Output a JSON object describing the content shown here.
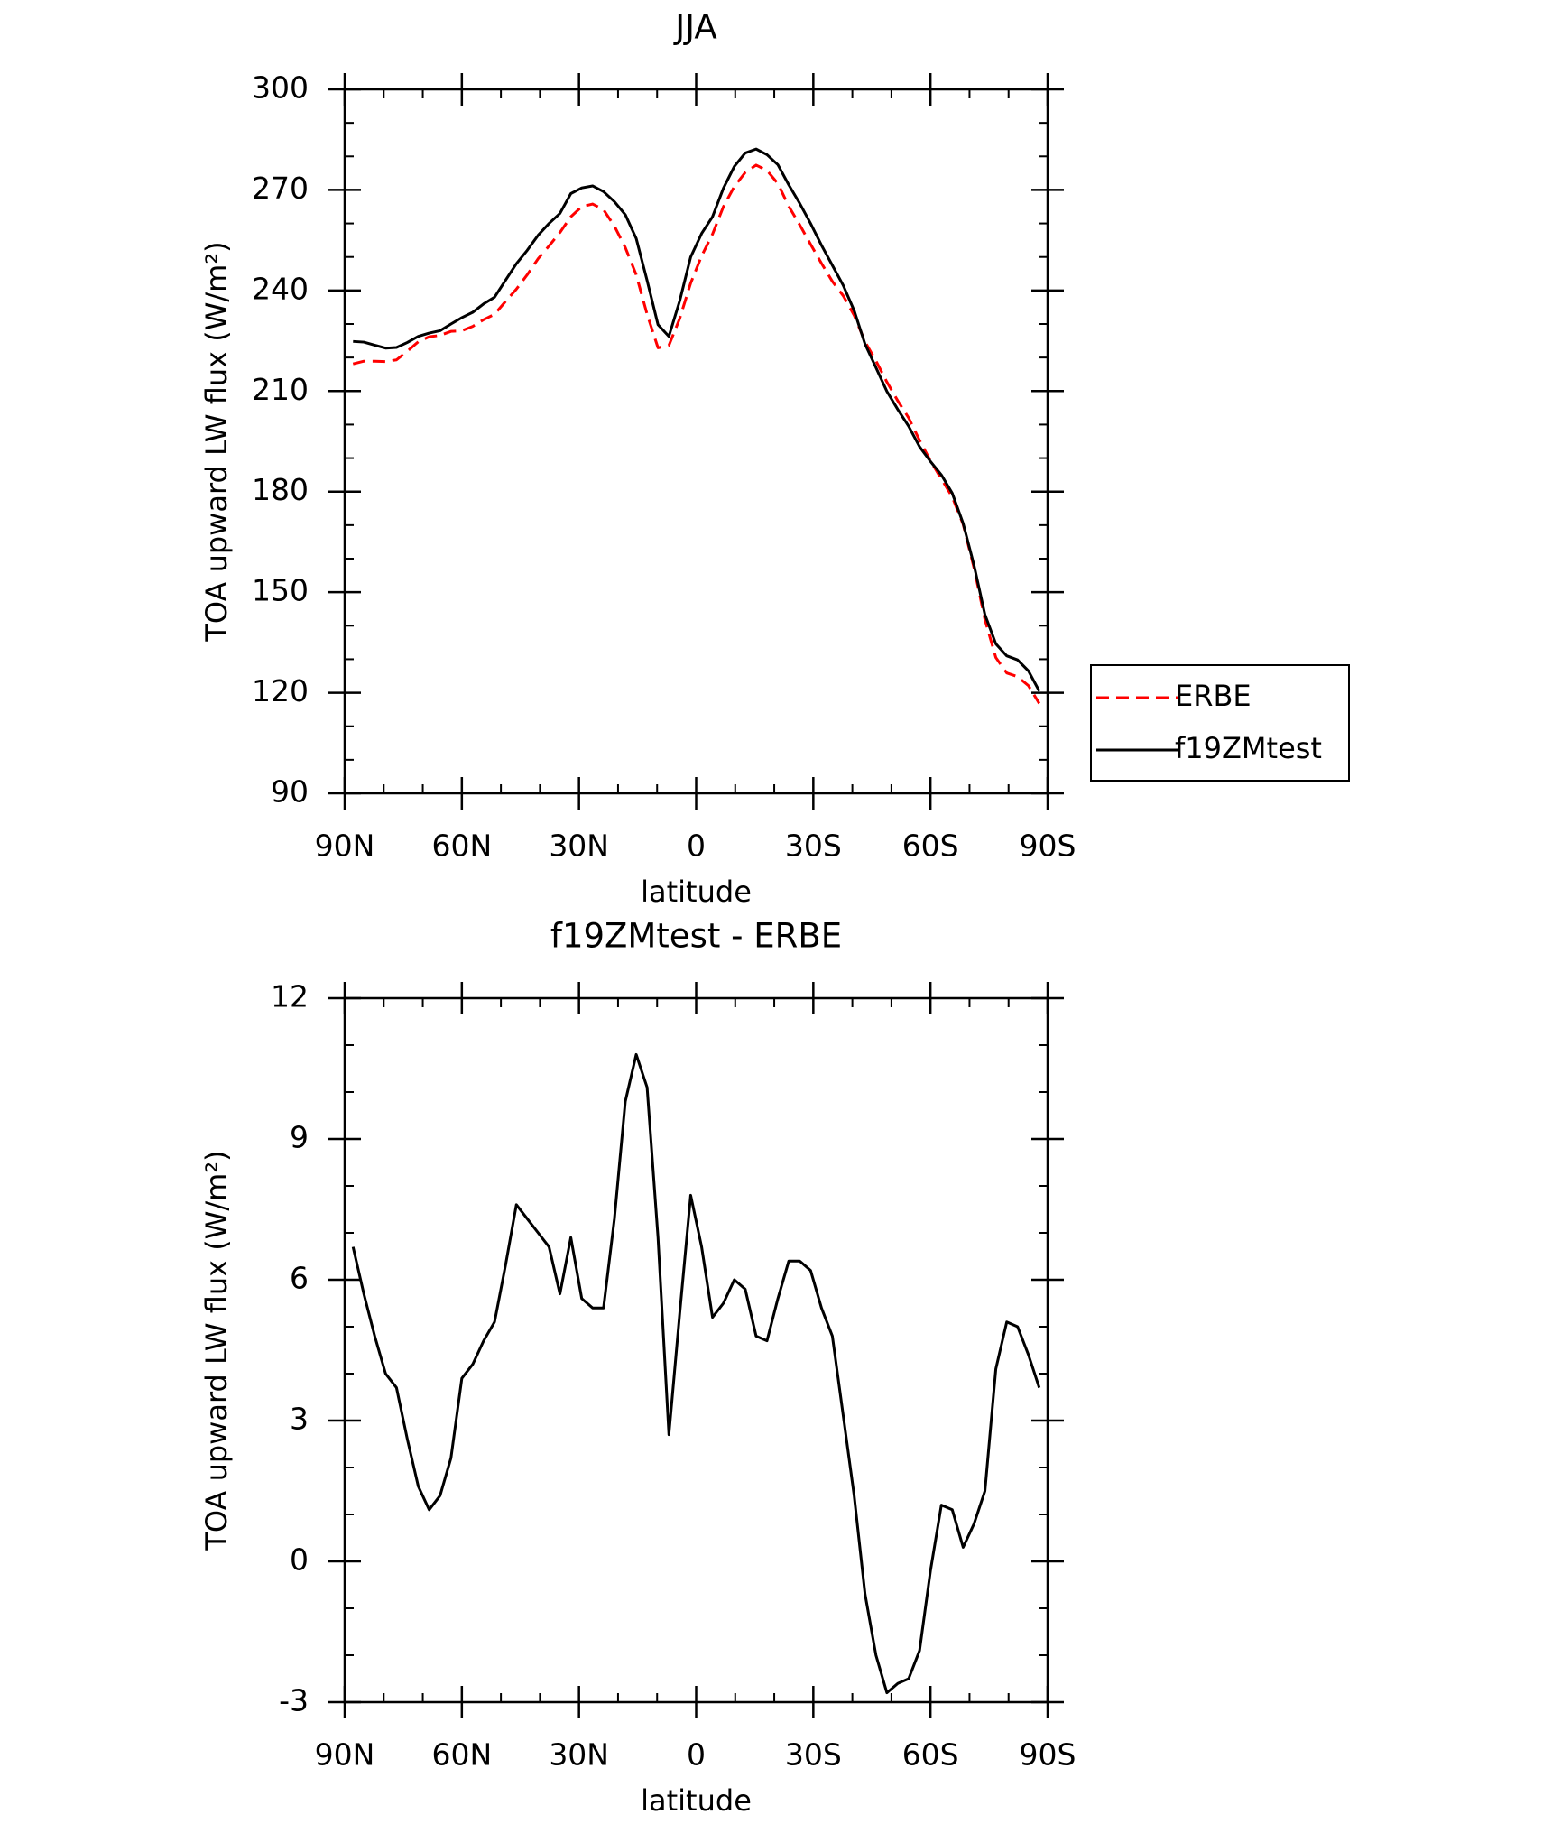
{
  "chart_data": [
    {
      "type": "line",
      "title": "JJA",
      "xlabel": "latitude",
      "ylabel": "TOA upward LW flux (W/m²)",
      "x": [
        87.86,
        85.1,
        82.31,
        79.53,
        76.74,
        73.95,
        71.16,
        68.37,
        65.58,
        62.79,
        60.0,
        57.21,
        54.42,
        51.63,
        48.84,
        46.04,
        43.25,
        40.46,
        37.67,
        34.88,
        32.09,
        29.3,
        26.51,
        23.72,
        20.93,
        18.14,
        15.35,
        12.56,
        9.77,
        6.98,
        4.19,
        1.4,
        -1.4,
        -4.19,
        -6.98,
        -9.77,
        -12.56,
        -15.35,
        -18.14,
        -20.93,
        -23.72,
        -26.51,
        -29.3,
        -32.09,
        -34.88,
        -37.67,
        -40.46,
        -43.25,
        -46.04,
        -48.84,
        -51.63,
        -54.42,
        -57.21,
        -60.0,
        -62.79,
        -65.58,
        -68.37,
        -71.16,
        -73.95,
        -76.74,
        -79.53,
        -82.31,
        -85.1,
        -87.86
      ],
      "series": [
        {
          "name": "ERBE",
          "color": "#ff0000",
          "dashed": true,
          "values": [
            218.1,
            218.9,
            218.9,
            218.8,
            219.3,
            221.9,
            224.7,
            226.2,
            226.6,
            227.8,
            228.0,
            229.3,
            231.3,
            232.9,
            236.7,
            240.4,
            244.7,
            249.5,
            253.3,
            257.3,
            262.0,
            265.0,
            265.8,
            264.1,
            259.2,
            252.8,
            244.7,
            232.9,
            222.9,
            223.6,
            231.7,
            242.2,
            250.3,
            256.8,
            265.0,
            271.0,
            275.2,
            277.4,
            275.8,
            271.9,
            265.1,
            259.6,
            253.8,
            248.1,
            242.7,
            238.4,
            232.6,
            224.7,
            219.0,
            212.7,
            207.1,
            202.0,
            195.3,
            189.2,
            183.8,
            178.4,
            170.2,
            157.2,
            141.8,
            130.5,
            125.9,
            124.8,
            122.1,
            116.8
          ]
        },
        {
          "name": "f19ZMtest",
          "color": "#000000",
          "dashed": false,
          "values": [
            224.8,
            224.6,
            223.7,
            222.8,
            223.0,
            224.5,
            226.3,
            227.3,
            228.0,
            230.0,
            231.9,
            233.5,
            236.0,
            238.0,
            243.0,
            248.0,
            252.0,
            256.5,
            260.0,
            263.0,
            268.9,
            270.6,
            271.2,
            269.5,
            266.5,
            262.6,
            255.5,
            243.0,
            229.8,
            226.3,
            237.0,
            250.0,
            257.0,
            262.0,
            270.5,
            277.0,
            281.0,
            282.2,
            280.5,
            277.5,
            271.5,
            266.0,
            260.0,
            253.5,
            247.5,
            241.5,
            234.0,
            224.0,
            217.0,
            209.9,
            204.5,
            199.5,
            193.4,
            189.0,
            185.0,
            179.5,
            170.5,
            158.0,
            143.3,
            134.6,
            131.0,
            129.8,
            126.5,
            120.5
          ]
        }
      ],
      "xlim": [
        90,
        -90
      ],
      "xticks": [
        {
          "value": 90,
          "label": "90N"
        },
        {
          "value": 60,
          "label": "60N"
        },
        {
          "value": 30,
          "label": "30N"
        },
        0,
        {
          "value": -30,
          "label": "30S"
        },
        {
          "value": -60,
          "label": "60S"
        },
        {
          "value": -90,
          "label": "90S"
        }
      ],
      "xminorticks": [
        80,
        70,
        50,
        40,
        20,
        10,
        -10,
        -20,
        -40,
        -50,
        -70,
        -80
      ],
      "ylim": [
        90,
        300
      ],
      "yticks": [
        90,
        120,
        150,
        180,
        210,
        240,
        270,
        300
      ],
      "yminorticks": [
        100,
        110,
        130,
        140,
        160,
        170,
        190,
        200,
        220,
        230,
        250,
        260,
        280,
        290
      ],
      "legend": "right"
    },
    {
      "type": "line",
      "title": "f19ZMtest - ERBE",
      "xlabel": "latitude",
      "ylabel": "TOA upward LW flux (W/m²)",
      "x": [
        87.86,
        85.1,
        82.31,
        79.53,
        76.74,
        73.95,
        71.16,
        68.37,
        65.58,
        62.79,
        60.0,
        57.21,
        54.42,
        51.63,
        48.84,
        46.04,
        43.25,
        40.46,
        37.67,
        34.88,
        32.09,
        29.3,
        26.51,
        23.72,
        20.93,
        18.14,
        15.35,
        12.56,
        9.77,
        6.98,
        4.19,
        1.4,
        -1.4,
        -4.19,
        -6.98,
        -9.77,
        -12.56,
        -15.35,
        -18.14,
        -20.93,
        -23.72,
        -26.51,
        -29.3,
        -32.09,
        -34.88,
        -37.67,
        -40.46,
        -43.25,
        -46.04,
        -48.84,
        -51.63,
        -54.42,
        -57.21,
        -60.0,
        -62.79,
        -65.58,
        -68.37,
        -71.16,
        -73.95,
        -76.74,
        -79.53,
        -82.31,
        -85.1,
        -87.86
      ],
      "values": [
        6.7,
        5.7,
        4.8,
        4.0,
        3.7,
        2.6,
        1.6,
        1.1,
        1.4,
        2.2,
        3.9,
        4.2,
        4.7,
        5.1,
        6.3,
        7.6,
        7.3,
        7.0,
        6.7,
        5.7,
        6.9,
        5.6,
        5.4,
        5.4,
        7.3,
        9.8,
        10.8,
        10.1,
        6.9,
        2.7,
        5.3,
        7.8,
        6.7,
        5.2,
        5.5,
        6.0,
        5.8,
        4.8,
        4.7,
        5.6,
        6.4,
        6.4,
        6.2,
        5.4,
        4.8,
        3.1,
        1.4,
        -0.7,
        -2.0,
        -2.8,
        -2.6,
        -2.5,
        -1.9,
        -0.2,
        1.2,
        1.1,
        0.3,
        0.8,
        1.5,
        4.1,
        5.1,
        5.0,
        4.4,
        3.7
      ],
      "color": "#000000",
      "xlim": [
        90,
        -90
      ],
      "xticks": [
        {
          "value": 90,
          "label": "90N"
        },
        {
          "value": 60,
          "label": "60N"
        },
        {
          "value": 30,
          "label": "30N"
        },
        0,
        {
          "value": -30,
          "label": "30S"
        },
        {
          "value": -60,
          "label": "60S"
        },
        {
          "value": -90,
          "label": "90S"
        }
      ],
      "xminorticks": [
        80,
        70,
        50,
        40,
        20,
        10,
        -10,
        -20,
        -40,
        -50,
        -70,
        -80
      ],
      "ylim": [
        -3,
        12
      ],
      "yticks": [
        -3,
        0,
        3,
        6,
        9,
        12
      ],
      "yminorticks": [
        -2,
        -1,
        1,
        2,
        4,
        5,
        7,
        8,
        10,
        11
      ]
    }
  ]
}
